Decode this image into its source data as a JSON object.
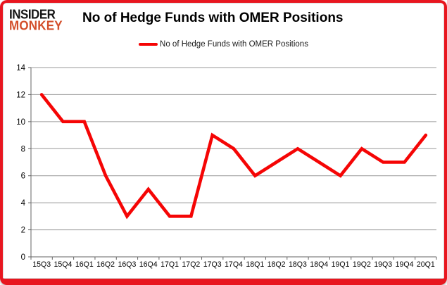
{
  "logo": {
    "line1": "INSIDER",
    "line2": "MONKEY"
  },
  "title": "No of Hedge Funds with OMER Positions",
  "legend": {
    "label": "No of Hedge Funds with OMER Positions"
  },
  "colors": {
    "line": "#f50505",
    "frame": "#e8161f",
    "logo_accent": "#d34e2a",
    "gridline": "#9a9a9a",
    "axis": "#666666",
    "text": "#000000"
  },
  "chart_data": {
    "type": "line",
    "title": "No of Hedge Funds with OMER Positions",
    "categories": [
      "15Q3",
      "15Q4",
      "16Q1",
      "16Q2",
      "16Q3",
      "16Q4",
      "17Q1",
      "17Q2",
      "17Q3",
      "17Q4",
      "18Q1",
      "18Q2",
      "18Q3",
      "18Q4",
      "19Q1",
      "19Q2",
      "19Q3",
      "19Q4",
      "20Q1"
    ],
    "series": [
      {
        "name": "No of Hedge Funds with OMER Positions",
        "values": [
          12,
          10,
          10,
          6,
          3,
          5,
          3,
          3,
          9,
          8,
          6,
          7,
          8,
          7,
          6,
          8,
          7,
          7,
          9
        ]
      }
    ],
    "xlabel": "",
    "ylabel": "",
    "ylim": [
      0,
      14
    ],
    "yticks": [
      0,
      2,
      4,
      6,
      8,
      10,
      12,
      14
    ],
    "grid": true,
    "legend_position": "top"
  }
}
